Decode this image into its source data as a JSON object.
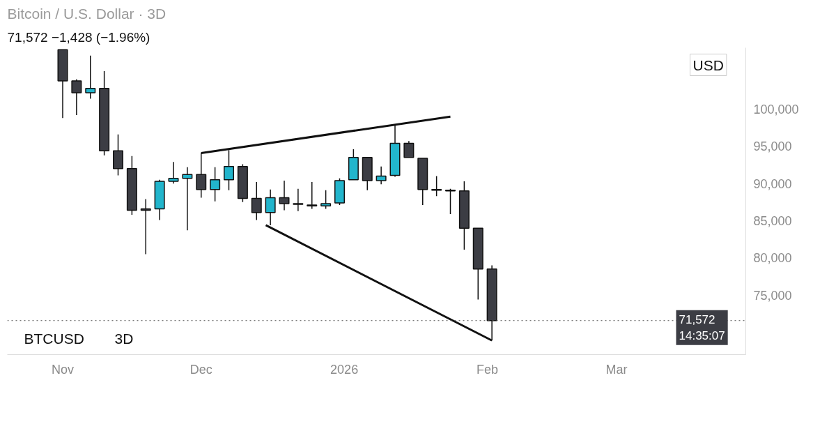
{
  "chart_data": {
    "type": "candlestick",
    "title": "Bitcoin / U.S. Dollar · 3D",
    "subtitle": "71,572 −1,428 (−1.96%)",
    "x": [
      "2025-11-01",
      "2025-11-04",
      "2025-11-07",
      "2025-11-10",
      "2025-11-13",
      "2025-11-16",
      "2025-11-19",
      "2025-11-22",
      "2025-11-25",
      "2025-11-28",
      "2025-12-01",
      "2025-12-04",
      "2025-12-07",
      "2025-12-10",
      "2025-12-13",
      "2025-12-16",
      "2025-12-19",
      "2025-12-22",
      "2025-12-25",
      "2025-12-28",
      "2025-12-31",
      "2026-01-03",
      "2026-01-06",
      "2026-01-09",
      "2026-01-12",
      "2026-01-15",
      "2026-01-18",
      "2026-01-21",
      "2026-01-24",
      "2026-01-27",
      "2026-01-30",
      "2026-02-02"
    ],
    "ohlc": [
      [
        108000,
        108000,
        98800,
        103800
      ],
      [
        103800,
        104000,
        99200,
        102200
      ],
      [
        102200,
        107200,
        101400,
        102800
      ],
      [
        102800,
        105100,
        93800,
        94400
      ],
      [
        94400,
        96600,
        91100,
        92000
      ],
      [
        92000,
        93700,
        85800,
        86400
      ],
      [
        86600,
        87900,
        80500,
        86400
      ],
      [
        86600,
        90500,
        85100,
        90300
      ],
      [
        90300,
        92900,
        90000,
        90700
      ],
      [
        90700,
        92200,
        83700,
        91200
      ],
      [
        91200,
        94100,
        88100,
        89200
      ],
      [
        89200,
        92200,
        87600,
        90500
      ],
      [
        90500,
        94500,
        89100,
        92300
      ],
      [
        92300,
        92600,
        87500,
        88000
      ],
      [
        88000,
        90200,
        85100,
        86100
      ],
      [
        86100,
        89200,
        84400,
        88100
      ],
      [
        88100,
        90400,
        86400,
        87300
      ],
      [
        87300,
        89300,
        86300,
        87200
      ],
      [
        87100,
        90200,
        86600,
        87000
      ],
      [
        87000,
        89100,
        86600,
        87300
      ],
      [
        87400,
        90700,
        87100,
        90400
      ],
      [
        90500,
        94600,
        90500,
        93500
      ],
      [
        93500,
        93500,
        89100,
        90400
      ],
      [
        90400,
        92300,
        89900,
        91000
      ],
      [
        91100,
        97900,
        90900,
        95400
      ],
      [
        95400,
        95700,
        93500,
        93500
      ],
      [
        93400,
        93400,
        87100,
        89200
      ],
      [
        89200,
        91000,
        88300,
        89100
      ],
      [
        89100,
        89300,
        85900,
        89000
      ],
      [
        89000,
        90300,
        81100,
        84000
      ],
      [
        84000,
        84000,
        74400,
        78500
      ],
      [
        78500,
        79000,
        68900,
        71572
      ]
    ],
    "colors": [
      "#3c3d44",
      "#3c3d44",
      "#22b5cc",
      "#3c3d44",
      "#3c3d44",
      "#3c3d44",
      "#3c3d44",
      "#22b5cc",
      "#22b5cc",
      "#22b5cc",
      "#3c3d44",
      "#22b5cc",
      "#22b5cc",
      "#3c3d44",
      "#3c3d44",
      "#22b5cc",
      "#3c3d44",
      "#3c3d44",
      "#3c3d44",
      "#22b5cc",
      "#22b5cc",
      "#22b5cc",
      "#3c3d44",
      "#22b5cc",
      "#22b5cc",
      "#3c3d44",
      "#3c3d44",
      "#3c3d44",
      "#3c3d44",
      "#3c3d44",
      "#3c3d44",
      "#3c3d44"
    ],
    "series": [
      {
        "type": "line",
        "color": "#111111",
        "x": [
          "2025-12-01",
          "2026-01-24"
        ],
        "values": [
          94100,
          99000
        ]
      },
      {
        "type": "line",
        "color": "#111111",
        "x": [
          "2025-12-15",
          "2026-02-02"
        ],
        "values": [
          84400,
          68900
        ]
      }
    ],
    "xlim": [
      "2025-10-20",
      "2026-03-29"
    ],
    "xticks": [
      {
        "value": "2025-11-01",
        "label": "Nov"
      },
      {
        "value": "2025-12-01",
        "label": "Dec"
      },
      {
        "value": "2026-01-01",
        "label": "2026"
      },
      {
        "value": "2026-02-01",
        "label": "Feb"
      },
      {
        "value": "2026-03-01",
        "label": "Mar"
      }
    ],
    "ylim": [
      67000,
      108250
    ],
    "yticks": [
      {
        "value": 75000,
        "label": "75,000"
      },
      {
        "value": 80000,
        "label": "80,000"
      },
      {
        "value": 85000,
        "label": "85,000"
      },
      {
        "value": 90000,
        "label": "90,000"
      },
      {
        "value": 95000,
        "label": "95,000"
      },
      {
        "value": 100000,
        "label": "100,000"
      }
    ],
    "ref_lines": [
      {
        "axis": "y",
        "value": 71572,
        "label": "71,572\n14:35:07",
        "color": "#555555",
        "line_style": "dotted"
      }
    ],
    "annotations": [
      "USD",
      "BTCUSD",
      "3D"
    ],
    "grid": false
  }
}
